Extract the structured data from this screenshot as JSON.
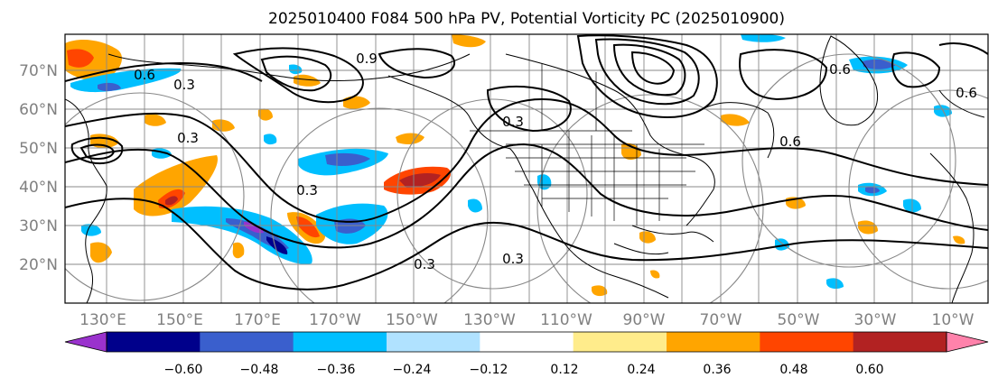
{
  "title": "2025010400 F084 500 hPa PV, Potential Vorticity PC (2025010900)",
  "y_labels": [
    "70°N",
    "60°N",
    "50°N",
    "40°N",
    "30°N",
    "20°N"
  ],
  "x_labels": [
    "130°E",
    "150°E",
    "170°E",
    "170°W",
    "150°W",
    "130°W",
    "110°W",
    "90°W",
    "70°W",
    "50°W",
    "30°W",
    "10°W"
  ],
  "contour_labels": [
    "0.6",
    "0.3",
    "0.9",
    "0.6",
    "0.3",
    "0.3",
    "0.6",
    "0.3",
    "0.3",
    "0.6",
    "0.3"
  ],
  "colorbar": {
    "tick_labels": [
      "−0.60",
      "−0.48",
      "−0.36",
      "−0.24",
      "−0.12",
      "0.12",
      "0.24",
      "0.36",
      "0.48",
      "0.60"
    ],
    "colors": [
      "#9a32cd",
      "#00008b",
      "#3a5fcd",
      "#00bfff",
      "#b0e2ff",
      "#ffffff",
      "#ffec8b",
      "#ffa500",
      "#ff4500",
      "#b22222",
      "#ff82ab"
    ]
  }
}
